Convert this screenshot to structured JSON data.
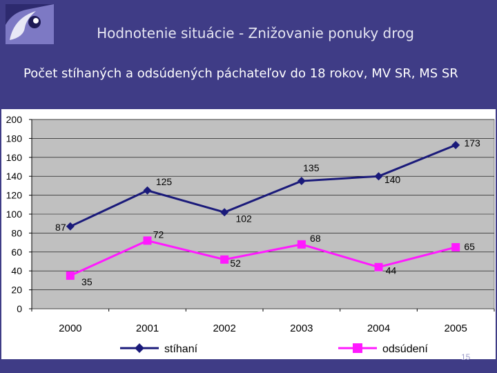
{
  "slide": {
    "title": "Hodnotenie situácie - Znižovanie ponuky drog",
    "subtitle": "Počet stíhaných a odsúdených páchateľov do 18 rokov, MV SR, MS SR",
    "page_number": "15"
  },
  "logo": {
    "icon": "spiral-logo-icon"
  },
  "colors": {
    "background": "#3f3c86",
    "plot_area": "#c0c0c0",
    "stihani": "#1a1a7a",
    "odsudeni": "#ff19ff"
  },
  "chart_data": {
    "type": "line",
    "categories": [
      "2000",
      "2001",
      "2002",
      "2003",
      "2004",
      "2005"
    ],
    "series": [
      {
        "name": "stíhaní",
        "values": [
          87,
          125,
          102,
          135,
          140,
          173
        ],
        "marker": "diamond",
        "color": "#1a1a7a"
      },
      {
        "name": "odsúdení",
        "values": [
          35,
          72,
          52,
          68,
          44,
          65
        ],
        "marker": "square",
        "color": "#ff19ff"
      }
    ],
    "y_ticks": [
      "0",
      "20",
      "40",
      "60",
      "80",
      "100",
      "120",
      "140",
      "160",
      "180",
      "200"
    ],
    "ylim": [
      0,
      200
    ],
    "grid": true,
    "legend": "bottom",
    "data_labels": true
  }
}
